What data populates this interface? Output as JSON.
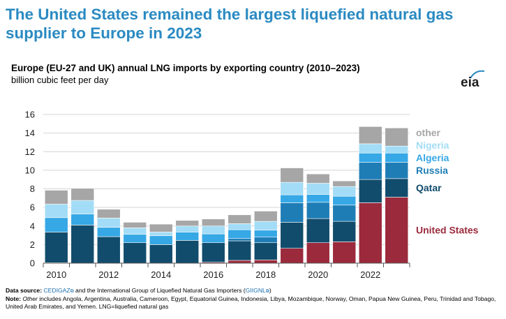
{
  "headline": "The United States remained the largest liquefied natural gas supplier to Europe in 2023",
  "logo": "eia",
  "chart_data": {
    "type": "bar",
    "stacked": true,
    "title": "Europe (EU-27 and UK) annual LNG imports by exporting country (2010–2023)",
    "ylabel": "billion cubic feet per day",
    "xlabel": "",
    "categories": [
      "2010",
      "2011",
      "2012",
      "2013",
      "2014",
      "2015",
      "2016",
      "2017",
      "2018",
      "2019",
      "2020",
      "2021",
      "2022",
      "2023"
    ],
    "x_tick_labels": [
      "2010",
      "2012",
      "2014",
      "2016",
      "2018",
      "2020",
      "2022"
    ],
    "y_tick_labels": [
      "0",
      "2",
      "4",
      "6",
      "8",
      "10",
      "12",
      "14",
      "16"
    ],
    "ylim": [
      0,
      16
    ],
    "grid": true,
    "legend": "right",
    "series": [
      {
        "name": "United States",
        "color": "#9b2a3c",
        "values": [
          0.05,
          0.0,
          0.0,
          0.0,
          0.0,
          0.0,
          0.1,
          0.3,
          0.35,
          1.6,
          2.2,
          2.3,
          6.5,
          7.1
        ]
      },
      {
        "name": "Qatar",
        "color": "#114c6c",
        "values": [
          3.3,
          4.1,
          2.85,
          2.2,
          2.0,
          2.45,
          2.1,
          2.1,
          1.85,
          2.8,
          2.6,
          2.2,
          2.5,
          2.0
        ]
      },
      {
        "name": "Russia",
        "color": "#1f7db6",
        "values": [
          0.0,
          0.0,
          0.0,
          0.0,
          0.0,
          0.0,
          0.0,
          0.25,
          0.6,
          2.1,
          1.75,
          1.75,
          1.85,
          1.75
        ]
      },
      {
        "name": "Algeria",
        "color": "#36a8e6",
        "values": [
          1.55,
          1.2,
          1.0,
          0.9,
          0.95,
          0.9,
          0.95,
          0.95,
          0.75,
          0.85,
          0.85,
          0.95,
          1.0,
          1.0
        ]
      },
      {
        "name": "Nigeria",
        "color": "#a3dcf6",
        "values": [
          1.45,
          1.45,
          1.0,
          0.7,
          0.4,
          0.65,
          0.85,
          0.65,
          0.95,
          1.35,
          1.2,
          1.05,
          1.0,
          0.75
        ]
      },
      {
        "name": "other",
        "color": "#a6a6a6",
        "values": [
          1.5,
          1.3,
          0.95,
          0.6,
          0.85,
          0.6,
          0.75,
          0.95,
          1.1,
          1.55,
          1.0,
          0.6,
          1.85,
          1.95
        ]
      }
    ]
  },
  "footer": {
    "source_label": "Data source:",
    "source_link": "CEDIGAZ",
    "source_mid": " and the International Group of Liquefied Natural Gas Importers (",
    "giignl": "GIIGNL",
    "source_end": ")",
    "note_label": "Note:",
    "note_other": "Other",
    "note_text": " includes Angola, Argentina, Australia, Cameroon, Egypt, Equatorial Guinea, Indonesia, Libya, Mozambique, Norway, Oman, Papua New Guinea, Peru, Trinidad and Tobago, United Arab Emirates, and Yemen. LNG=liquefied natural gas",
    "ext_icon": "external-link-icon"
  }
}
